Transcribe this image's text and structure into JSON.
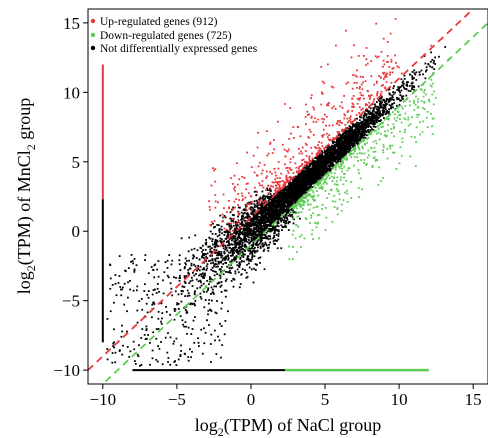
{
  "chart_data": {
    "type": "scatter",
    "title": "",
    "xlabel": {
      "prefix": "log",
      "sub": "2",
      "rest": "(TPM) of NaCl group"
    },
    "ylabel": {
      "prefix": "log",
      "sub": "2",
      "mid": "(TPM) of MnCl",
      "sub2": "2",
      "rest": " group"
    },
    "xlim": [
      -11,
      16
    ],
    "ylim": [
      -11,
      16
    ],
    "x_ticks": [
      -10,
      -5,
      0,
      5,
      10,
      15
    ],
    "x_tick_labels": [
      "−10",
      "−5",
      "0",
      "5",
      "10",
      "15"
    ],
    "y_ticks": [
      -10,
      -5,
      0,
      5,
      10,
      15
    ],
    "y_tick_labels": [
      "−10",
      "−5",
      "0",
      "5",
      "10",
      "15"
    ],
    "grid": false,
    "legend_position": "top-left",
    "series": [
      {
        "name": "Up-regulated genes (912)",
        "color": "#e8383d",
        "count": 912,
        "vertical_x": -10,
        "vertical_ymin": 2.3,
        "vertical_ymax": 12
      },
      {
        "name": "Down-regulated genes (725)",
        "color": "#5ccc55",
        "count": 725,
        "horizontal_y": -10,
        "horizontal_xmin": 2.3,
        "horizontal_xmax": 12
      },
      {
        "name": "Not differentially expressed genes",
        "color": "#000000",
        "vertical_x": -10,
        "vertical_ymin": -8,
        "vertical_ymax": 2.3,
        "horizontal_y": -10,
        "horizontal_xmin": -8,
        "horizontal_xmax": 2.3
      }
    ],
    "threshold_lines": [
      {
        "color": "#e8383d",
        "style": "dashed",
        "slope": 1,
        "intercept": 1
      },
      {
        "color": "#5ccc55",
        "style": "dashed",
        "slope": 1,
        "intercept": -1
      }
    ]
  }
}
